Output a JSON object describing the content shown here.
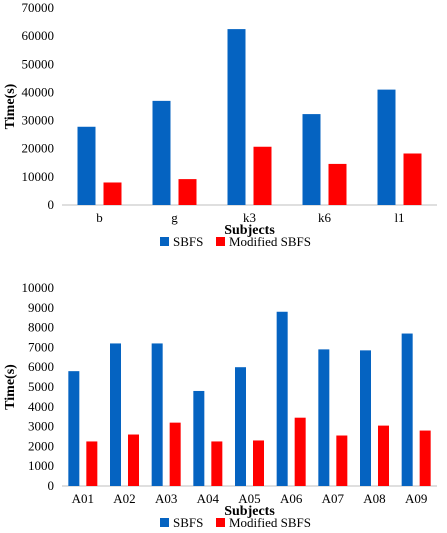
{
  "chart_data": [
    {
      "type": "bar",
      "title": "",
      "xlabel": "Subjects",
      "ylabel": "Time(s)",
      "ylim": [
        0,
        70000
      ],
      "yticks": [
        "0",
        "10000",
        "20000",
        "30000",
        "40000",
        "50000",
        "60000",
        "70000"
      ],
      "categories": [
        "b",
        "g",
        "k3",
        "k6",
        "l1"
      ],
      "series": [
        {
          "name": "SBFS",
          "color": "#0563C1",
          "values": [
            27800,
            37000,
            62500,
            32300,
            41000
          ]
        },
        {
          "name": "Modified SBFS",
          "color": "#FF0000",
          "values": [
            8000,
            9200,
            20700,
            14600,
            18300
          ]
        }
      ],
      "grid": false,
      "legend": "bottom"
    },
    {
      "type": "bar",
      "title": "",
      "xlabel": "Subjects",
      "ylabel": "Time(s)",
      "ylim": [
        0,
        10000
      ],
      "yticks": [
        "0",
        "1000",
        "2000",
        "3000",
        "4000",
        "5000",
        "6000",
        "7000",
        "8000",
        "9000",
        "10000"
      ],
      "categories": [
        "A01",
        "A02",
        "A03",
        "A04",
        "A05",
        "A06",
        "A07",
        "A08",
        "A09"
      ],
      "series": [
        {
          "name": "SBFS",
          "color": "#0563C1",
          "values": [
            5800,
            7200,
            7200,
            4800,
            6000,
            8800,
            6900,
            6850,
            7700
          ]
        },
        {
          "name": "Modified SBFS",
          "color": "#FF0000",
          "values": [
            2250,
            2600,
            3200,
            2250,
            2300,
            3450,
            2550,
            3050,
            2800
          ]
        }
      ],
      "grid": false,
      "legend": "bottom"
    }
  ]
}
